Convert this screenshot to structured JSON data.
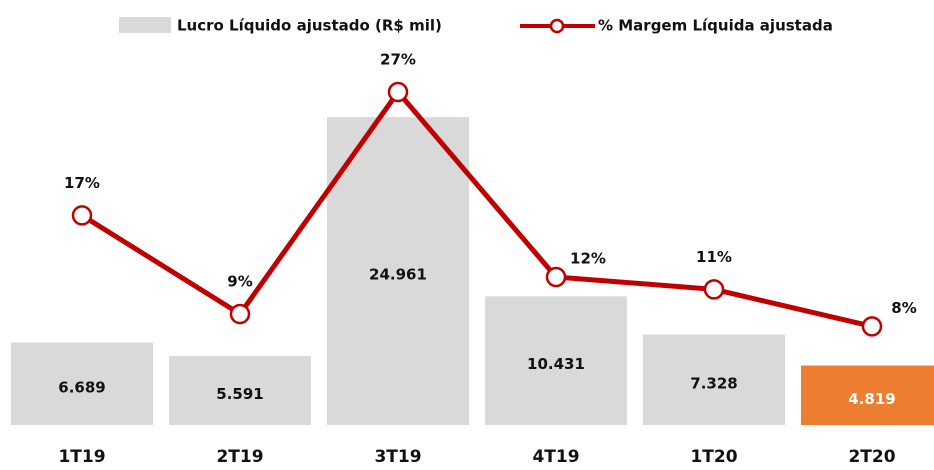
{
  "chart_data": {
    "type": "bar-line",
    "categories": [
      "1T19",
      "2T19",
      "3T19",
      "4T19",
      "1T20",
      "2T20"
    ],
    "series": [
      {
        "name": "Lucro Líquido ajustado (R$ mil)",
        "type": "bar",
        "color": "#d9d9d9",
        "colors": [
          "#d9d9d9",
          "#d9d9d9",
          "#d9d9d9",
          "#d9d9d9",
          "#d9d9d9",
          "#ed7d31"
        ],
        "label_colors": [
          "#111111",
          "#111111",
          "#111111",
          "#111111",
          "#111111",
          "#ffffff"
        ],
        "values": [
          6689,
          5591,
          24961,
          10431,
          7328,
          4819
        ],
        "value_labels": [
          "6.689",
          "5.591",
          "24.961",
          "10.431",
          "7.328",
          "4.819"
        ]
      },
      {
        "name": "% Margem Líquida ajustada",
        "type": "line",
        "axis": "y2",
        "color": "#c00000",
        "values": [
          17,
          9,
          27,
          12,
          11,
          8
        ],
        "value_labels": [
          "17%",
          "9%",
          "27%",
          "12%",
          "11%",
          "8%"
        ]
      }
    ],
    "ylim": [
      0,
      30000
    ],
    "y2lim": [
      0,
      30
    ]
  }
}
